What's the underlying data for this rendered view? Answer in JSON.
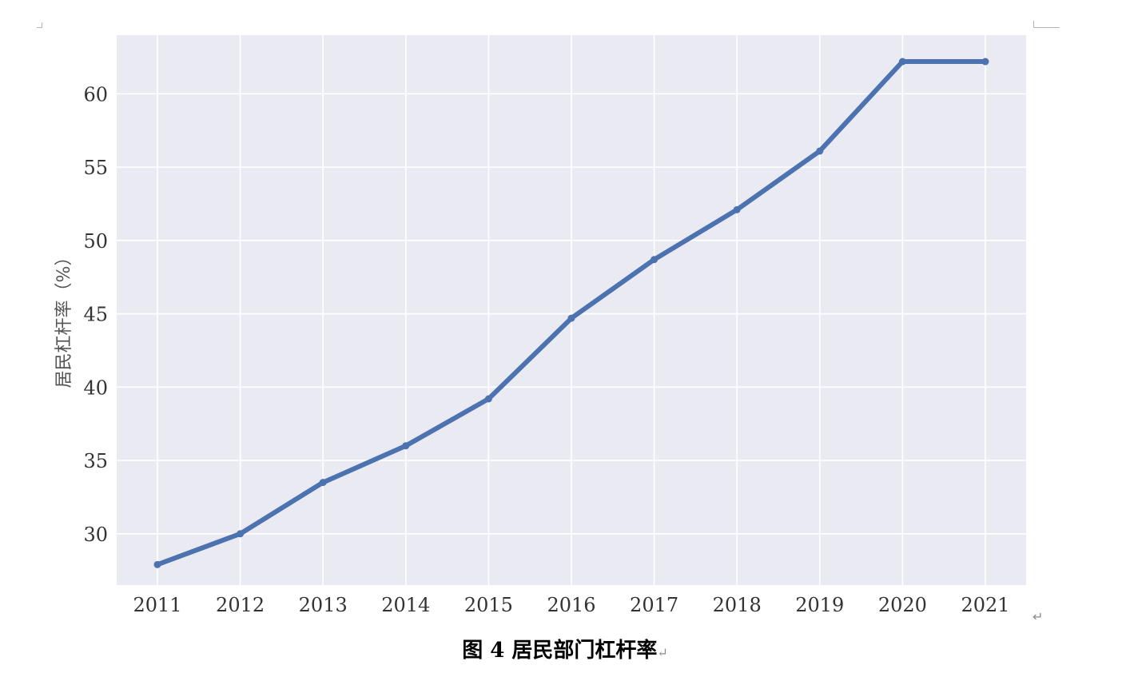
{
  "caption": "图 4  居民部门杠杆率",
  "paragraph_mark": "↵",
  "colors": {
    "plot_bg": "#eaeaf2",
    "grid": "#ffffff",
    "line": "#4c72b0"
  },
  "chart_data": {
    "type": "line",
    "x": [
      "2011",
      "2012",
      "2013",
      "2014",
      "2015",
      "2016",
      "2017",
      "2018",
      "2019",
      "2020",
      "2021"
    ],
    "series": [
      {
        "values": [
          27.9,
          30.0,
          33.5,
          36.0,
          39.2,
          44.7,
          48.7,
          52.1,
          56.1,
          62.2,
          62.2
        ]
      }
    ],
    "ylabel": "居民杠杆率（%）",
    "yticks": [
      30,
      35,
      40,
      45,
      50,
      55,
      60
    ],
    "ylim": [
      26.5,
      64
    ],
    "grid": true,
    "marker": "circle"
  }
}
